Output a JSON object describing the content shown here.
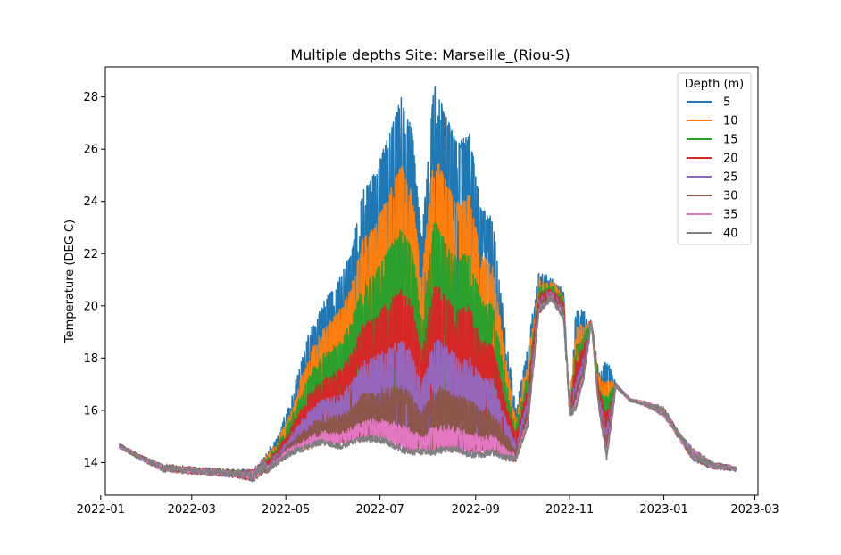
{
  "chart_data": {
    "type": "line",
    "title": "Multiple depths Site: Marseille_(Riou-S)",
    "xlabel": "",
    "ylabel": "Temperature (DEG C)",
    "xlim": [
      "2022-01-04",
      "2023-03-03"
    ],
    "ylim": [
      12.75,
      29.15
    ],
    "x_ticks": [
      "2022-01",
      "2022-03",
      "2022-05",
      "2022-07",
      "2022-09",
      "2022-11",
      "2023-01",
      "2023-03"
    ],
    "y_ticks": [
      14,
      16,
      18,
      20,
      22,
      24,
      26,
      28
    ],
    "grid": false,
    "legend": {
      "title": "Depth (m)",
      "placement": "top-right"
    },
    "series": [
      {
        "name": "5",
        "color": "#1f77b4",
        "index": 0
      },
      {
        "name": "10",
        "color": "#ff7f0e",
        "index": 1
      },
      {
        "name": "15",
        "color": "#2ca02c",
        "index": 2
      },
      {
        "name": "20",
        "color": "#d62728",
        "index": 3
      },
      {
        "name": "25",
        "color": "#9467bd",
        "index": 4
      },
      {
        "name": "30",
        "color": "#8c564b",
        "index": 5
      },
      {
        "name": "35",
        "color": "#e377c2",
        "index": 6
      },
      {
        "name": "40",
        "color": "#7f7f7f",
        "index": 7
      }
    ],
    "envelope": {
      "date": [
        "2022-01-13",
        "2022-01-25",
        "2022-02-10",
        "2022-03-01",
        "2022-03-25",
        "2022-04-10",
        "2022-04-25",
        "2022-05-05",
        "2022-05-15",
        "2022-05-25",
        "2022-06-05",
        "2022-06-12",
        "2022-06-20",
        "2022-06-28",
        "2022-07-05",
        "2022-07-15",
        "2022-07-22",
        "2022-07-28",
        "2022-08-05",
        "2022-08-12",
        "2022-08-20",
        "2022-08-28",
        "2022-09-05",
        "2022-09-12",
        "2022-09-20",
        "2022-09-27",
        "2022-10-05",
        "2022-10-12",
        "2022-10-20",
        "2022-10-28",
        "2022-11-01",
        "2022-11-05",
        "2022-11-10",
        "2022-11-15",
        "2022-11-20",
        "2022-11-25",
        "2022-12-01",
        "2022-12-10",
        "2022-12-20",
        "2023-01-01",
        "2023-01-10",
        "2023-01-20",
        "2023-02-01",
        "2023-02-17"
      ],
      "min": [
        14.6,
        14.2,
        13.7,
        13.6,
        13.5,
        13.3,
        14.0,
        14.4,
        14.6,
        14.8,
        14.6,
        14.8,
        14.9,
        14.9,
        14.8,
        14.5,
        14.4,
        14.4,
        14.4,
        14.5,
        14.5,
        14.3,
        14.3,
        14.4,
        14.2,
        14.1,
        15.5,
        19.8,
        20.3,
        19.6,
        15.8,
        16.1,
        17.2,
        19.3,
        16.0,
        14.2,
        16.9,
        16.4,
        16.2,
        15.8,
        15.0,
        14.1,
        13.8,
        13.7
      ],
      "max": [
        14.7,
        14.3,
        13.9,
        13.8,
        13.7,
        13.7,
        14.8,
        16.5,
        18.7,
        20.0,
        21.0,
        21.9,
        24.3,
        25.0,
        26.2,
        27.9,
        26.6,
        22.5,
        28.5,
        27.3,
        26.1,
        26.5,
        23.6,
        23.3,
        19.1,
        16.0,
        18.5,
        21.2,
        21.0,
        20.6,
        16.0,
        19.8,
        19.7,
        19.4,
        17.5,
        17.8,
        17.0,
        16.4,
        16.3,
        16.1,
        15.2,
        14.5,
        14.0,
        13.8
      ]
    }
  }
}
